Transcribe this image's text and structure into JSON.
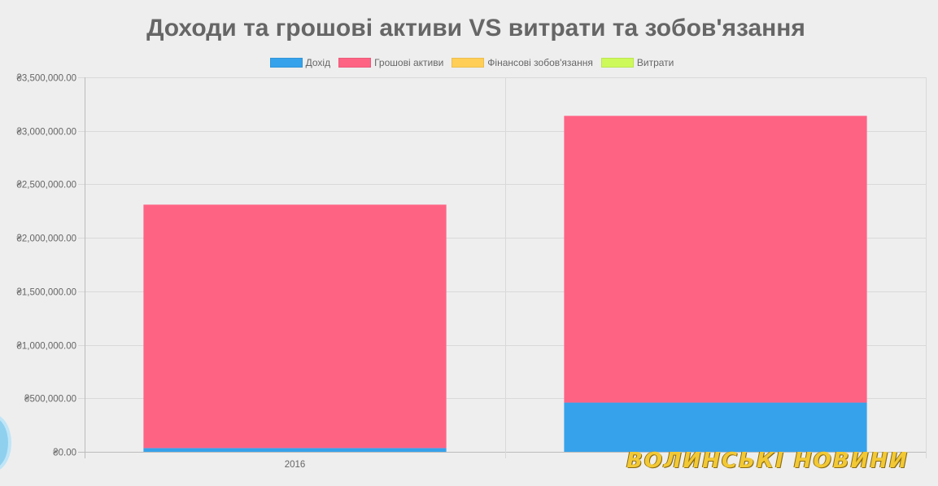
{
  "chart_data": {
    "type": "bar",
    "stacked": true,
    "title": "Доходи та грошові активи VS витрати та зобов'язання",
    "categories": [
      "2016",
      ""
    ],
    "series": [
      {
        "name": "Дохід",
        "color": "#36a2eb",
        "values": [
          35000,
          460000
        ]
      },
      {
        "name": "Грошові активи",
        "color": "#ff6384",
        "values": [
          2275000,
          2680000
        ]
      },
      {
        "name": "Фінансові зобов'язання",
        "color": "#ffce56",
        "values": [
          0,
          0
        ]
      },
      {
        "name": "Витрати",
        "color": "#cdf95a",
        "values": [
          0,
          0
        ]
      }
    ],
    "ylim": [
      0,
      3500000
    ],
    "yticks": [
      0,
      500000,
      1000000,
      1500000,
      2000000,
      2500000,
      3000000,
      3500000
    ],
    "ytick_labels": [
      "₴0.00",
      "₴500,000.00",
      "₴1,000,000.00",
      "₴1,500,000.00",
      "₴2,000,000.00",
      "₴2,500,000.00",
      "₴3,000,000.00",
      "₴3,500,000.00"
    ],
    "grid": true,
    "legend": "top-center",
    "xlabel": "",
    "ylabel": ""
  },
  "watermark": {
    "text": "ВОЛИНСЬКІ НОВИНИ"
  }
}
